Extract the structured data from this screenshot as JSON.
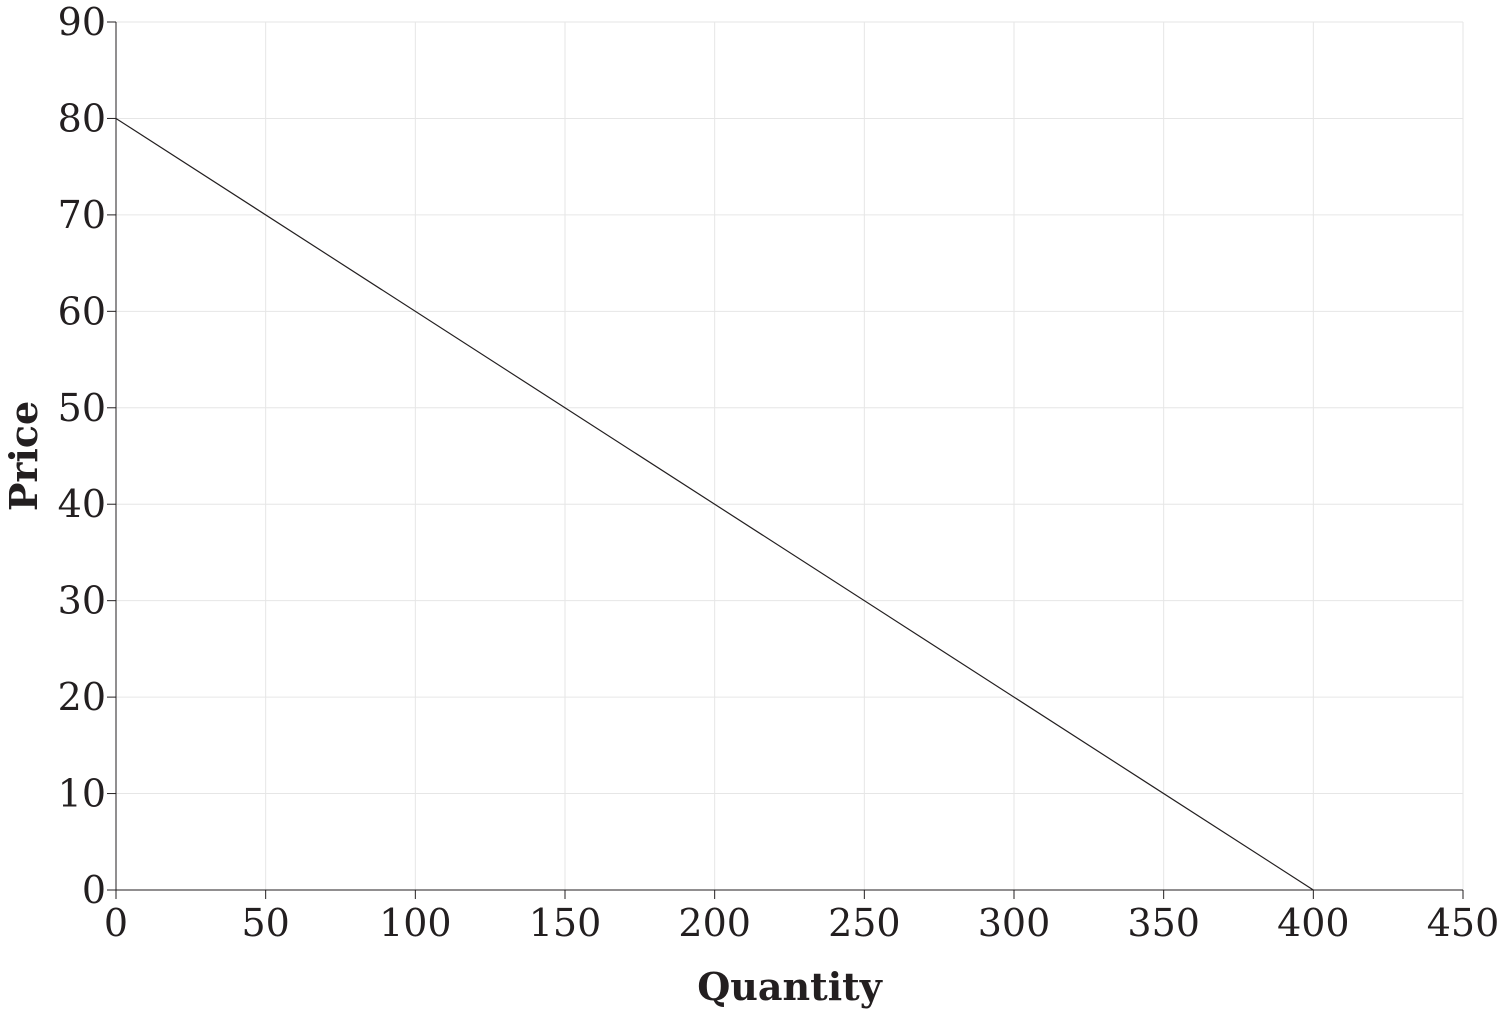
{
  "chart_data": {
    "type": "line",
    "xlabel": "Quantity",
    "ylabel": "Price",
    "xlim": [
      0,
      450
    ],
    "ylim": [
      0,
      90
    ],
    "x_ticks": [
      0,
      50,
      100,
      150,
      200,
      250,
      300,
      350,
      400,
      450
    ],
    "y_ticks": [
      0,
      10,
      20,
      30,
      40,
      50,
      60,
      70,
      80,
      90
    ],
    "grid": true,
    "series": [
      {
        "x": [
          0,
          400
        ],
        "y": [
          80,
          0
        ],
        "color": "#231f20"
      }
    ]
  }
}
